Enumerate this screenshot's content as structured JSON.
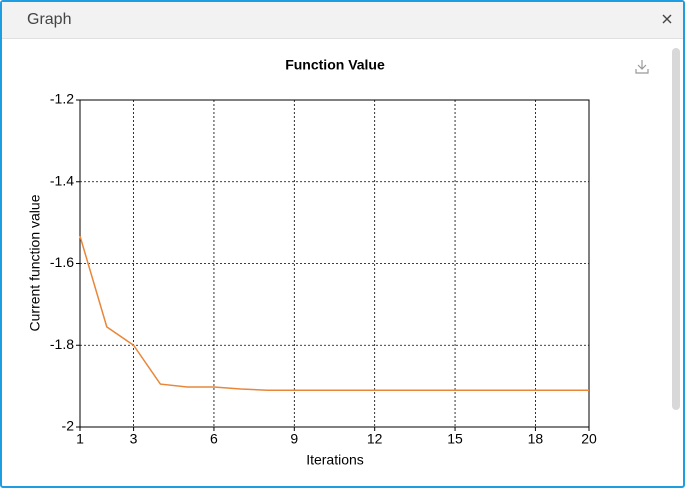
{
  "window": {
    "title": "Graph"
  },
  "chart_data": {
    "type": "line",
    "title": "Function Value",
    "x_label": "Iterations",
    "y_label": "Current function value",
    "x": [
      1,
      2,
      3,
      4,
      5,
      6,
      7,
      8,
      9,
      10,
      11,
      12,
      13,
      14,
      15,
      16,
      17,
      18,
      19,
      20
    ],
    "values": [
      -1.533,
      -1.755,
      -1.8,
      -1.895,
      -1.902,
      -1.902,
      -1.907,
      -1.91,
      -1.91,
      -1.91,
      -1.91,
      -1.91,
      -1.91,
      -1.91,
      -1.91,
      -1.91,
      -1.91,
      -1.91,
      -1.91,
      -1.91
    ],
    "color": "#e8873a",
    "xlim": [
      1,
      20
    ],
    "xticks": [
      1,
      3,
      6,
      9,
      12,
      15,
      18,
      20
    ],
    "ylim": [
      -2,
      -1.2
    ],
    "yticks": [
      -1.2,
      -1.4,
      -1.6,
      -1.8,
      -2
    ],
    "grid": true
  }
}
